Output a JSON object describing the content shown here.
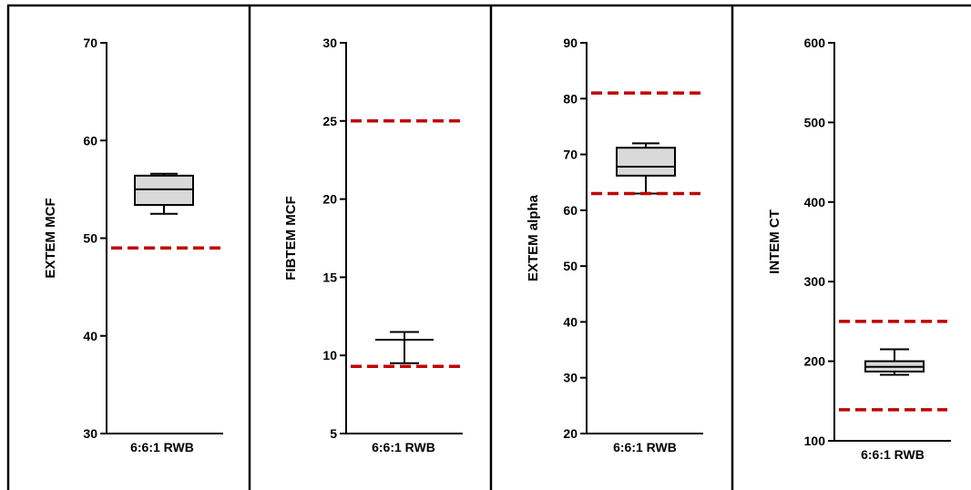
{
  "colors": {
    "box_fill": "#d9d9d9",
    "reference_line": "#c00000"
  },
  "chart_data": [
    {
      "type": "box",
      "ylabel": "EXTEM MCF",
      "categories": [
        "6:6:1 RWB"
      ],
      "ylim": [
        30,
        70
      ],
      "yticks": [
        30,
        40,
        50,
        60,
        70
      ],
      "box": {
        "min": 52.5,
        "q1": 53.4,
        "median": 55.0,
        "q3": 56.4,
        "max": 56.6
      },
      "reference_lines": [
        49
      ]
    },
    {
      "type": "box",
      "ylabel": "FIBTEM MCF",
      "categories": [
        "6:6:1 RWB"
      ],
      "ylim": [
        5,
        30
      ],
      "yticks": [
        5,
        10,
        15,
        20,
        25,
        30
      ],
      "box": {
        "min": 9.5,
        "q1": 11.0,
        "median": 11.0,
        "q3": 11.0,
        "max": 11.5
      },
      "reference_lines": [
        9.3,
        25
      ]
    },
    {
      "type": "box",
      "ylabel": "EXTEM alpha",
      "categories": [
        "6:6:1 RWB"
      ],
      "ylim": [
        20,
        90
      ],
      "yticks": [
        20,
        30,
        40,
        50,
        60,
        70,
        80,
        90
      ],
      "box": {
        "min": 63.0,
        "q1": 66.2,
        "median": 67.8,
        "q3": 71.2,
        "max": 72.0
      },
      "reference_lines": [
        63,
        81
      ]
    },
    {
      "type": "box",
      "ylabel": "INTEM CT",
      "categories": [
        "6:6:1 RWB"
      ],
      "ylim": [
        100,
        600
      ],
      "yticks": [
        100,
        200,
        300,
        400,
        500,
        600
      ],
      "box": {
        "min": 183,
        "q1": 187,
        "median": 193,
        "q3": 200,
        "max": 215
      },
      "reference_lines": [
        139,
        250
      ]
    }
  ]
}
